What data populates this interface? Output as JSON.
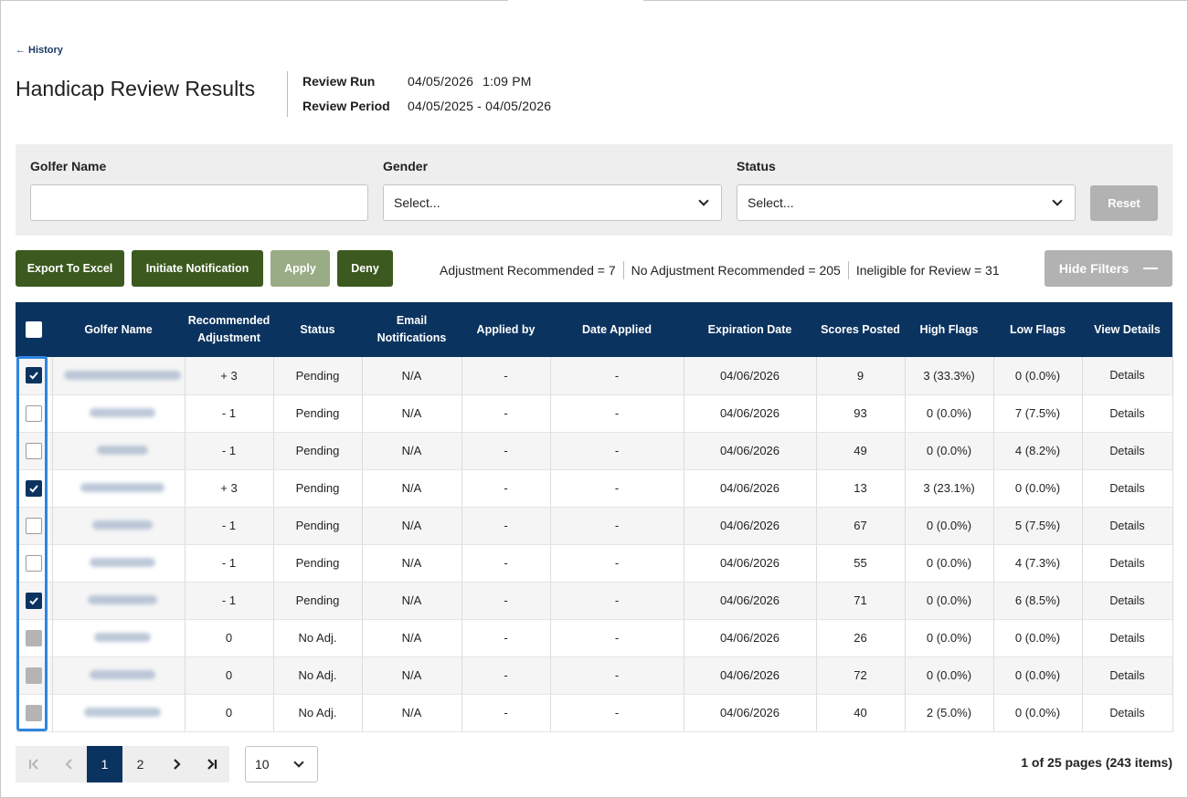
{
  "nav": {
    "back_label": "History"
  },
  "header": {
    "title": "Handicap Review Results",
    "review_run_label": "Review Run",
    "review_run_date": "04/05/2026",
    "review_run_time": "1:09 PM",
    "review_period_label": "Review Period",
    "review_period_value": "04/05/2025 - 04/05/2026"
  },
  "filters": {
    "golfer_name_label": "Golfer Name",
    "golfer_name_value": "",
    "gender_label": "Gender",
    "gender_value": "Select...",
    "status_label": "Status",
    "status_value": "Select...",
    "reset_label": "Reset"
  },
  "actions": {
    "export_label": "Export To Excel",
    "notify_label": "Initiate Notification",
    "apply_label": "Apply",
    "deny_label": "Deny",
    "hide_filters_label": "Hide Filters"
  },
  "stats": {
    "adjustment_recommended": "Adjustment Recommended = 7",
    "no_adjustment_recommended": "No Adjustment Recommended = 205",
    "ineligible": "Ineligible for Review = 31"
  },
  "table": {
    "columns": [
      "Golfer Name",
      "Recommended Adjustment",
      "Status",
      "Email Notifications",
      "Applied by",
      "Date Applied",
      "Expiration Date",
      "Scores Posted",
      "High Flags",
      "Low Flags",
      "View Details"
    ],
    "rows": [
      {
        "checkbox": "checked",
        "adjustment": "+ 3",
        "status": "Pending",
        "email": "N/A",
        "applied_by": "-",
        "date_applied": "-",
        "expiration": "04/06/2026",
        "scores": "9",
        "high": "3 (33.3%)",
        "low": "0 (0.0%)",
        "details": "Details"
      },
      {
        "checkbox": "unchecked",
        "adjustment": "- 1",
        "status": "Pending",
        "email": "N/A",
        "applied_by": "-",
        "date_applied": "-",
        "expiration": "04/06/2026",
        "scores": "93",
        "high": "0 (0.0%)",
        "low": "7 (7.5%)",
        "details": "Details"
      },
      {
        "checkbox": "unchecked",
        "adjustment": "- 1",
        "status": "Pending",
        "email": "N/A",
        "applied_by": "-",
        "date_applied": "-",
        "expiration": "04/06/2026",
        "scores": "49",
        "high": "0 (0.0%)",
        "low": "4 (8.2%)",
        "details": "Details"
      },
      {
        "checkbox": "checked",
        "adjustment": "+ 3",
        "status": "Pending",
        "email": "N/A",
        "applied_by": "-",
        "date_applied": "-",
        "expiration": "04/06/2026",
        "scores": "13",
        "high": "3 (23.1%)",
        "low": "0 (0.0%)",
        "details": "Details"
      },
      {
        "checkbox": "unchecked",
        "adjustment": "- 1",
        "status": "Pending",
        "email": "N/A",
        "applied_by": "-",
        "date_applied": "-",
        "expiration": "04/06/2026",
        "scores": "67",
        "high": "0 (0.0%)",
        "low": "5 (7.5%)",
        "details": "Details"
      },
      {
        "checkbox": "unchecked",
        "adjustment": "- 1",
        "status": "Pending",
        "email": "N/A",
        "applied_by": "-",
        "date_applied": "-",
        "expiration": "04/06/2026",
        "scores": "55",
        "high": "0 (0.0%)",
        "low": "4 (7.3%)",
        "details": "Details"
      },
      {
        "checkbox": "checked",
        "adjustment": "- 1",
        "status": "Pending",
        "email": "N/A",
        "applied_by": "-",
        "date_applied": "-",
        "expiration": "04/06/2026",
        "scores": "71",
        "high": "0 (0.0%)",
        "low": "6 (8.5%)",
        "details": "Details"
      },
      {
        "checkbox": "disabled",
        "adjustment": "0",
        "status": "No Adj.",
        "email": "N/A",
        "applied_by": "-",
        "date_applied": "-",
        "expiration": "04/06/2026",
        "scores": "26",
        "high": "0 (0.0%)",
        "low": "0 (0.0%)",
        "details": "Details"
      },
      {
        "checkbox": "disabled",
        "adjustment": "0",
        "status": "No Adj.",
        "email": "N/A",
        "applied_by": "-",
        "date_applied": "-",
        "expiration": "04/06/2026",
        "scores": "72",
        "high": "0 (0.0%)",
        "low": "0 (0.0%)",
        "details": "Details"
      },
      {
        "checkbox": "disabled",
        "adjustment": "0",
        "status": "No Adj.",
        "email": "N/A",
        "applied_by": "-",
        "date_applied": "-",
        "expiration": "04/06/2026",
        "scores": "40",
        "high": "2 (5.0%)",
        "low": "0 (0.0%)",
        "details": "Details"
      }
    ]
  },
  "pagination": {
    "page_1": "1",
    "page_2": "2",
    "page_size": "10",
    "info": "1 of 25 pages (243 items)"
  },
  "colors": {
    "primary_navy": "#0b335f",
    "action_green": "#3c5a1f",
    "disabled_gray": "#b2b2b2",
    "highlight_blue": "#2e86de"
  }
}
